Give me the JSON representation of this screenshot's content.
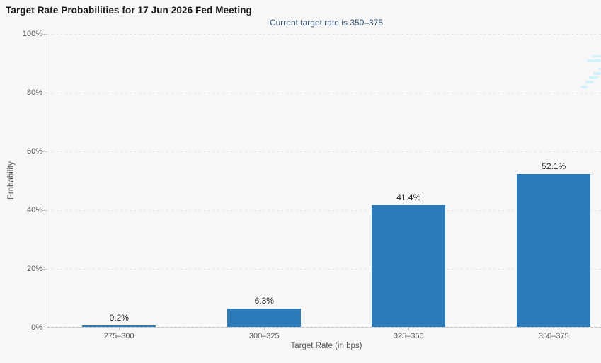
{
  "title": "Target Rate Probabilities for 17 Jun 2026 Fed Meeting",
  "subtitle": "Current target rate is 350–375",
  "chart_data": {
    "type": "bar",
    "title": "Target Rate Probabilities for 17 Jun 2026 Fed Meeting",
    "subtitle": "Current target rate is 350–375",
    "categories": [
      "275–300",
      "300–325",
      "325–350",
      "350–375"
    ],
    "values": [
      0.2,
      6.3,
      41.4,
      52.1
    ],
    "value_labels": [
      "0.2%",
      "6.3%",
      "41.4%",
      "52.1%"
    ],
    "xlabel": "Target Rate (in bps)",
    "ylabel": "Probability",
    "ylim": [
      0,
      100
    ],
    "ytick_labels": [
      "0%",
      "20%",
      "40%",
      "60%",
      "80%",
      "100%"
    ],
    "ytick_values": [
      0,
      20,
      40,
      60,
      80,
      100
    ],
    "grid": "horizontal dotted",
    "legend_position": "none",
    "bar_color": "#2d7cb9"
  },
  "colors": {
    "background": "#f7f7f7",
    "title_text": "#1a1a1a",
    "subtitle_text": "#2e4f6e",
    "axis_text": "#555555",
    "value_label_text": "#222222",
    "bar": "#2d7cb9",
    "gridline": "#d6d6d6",
    "axis_line": "#c9c9c9",
    "watermark": "#d3f1f9"
  },
  "watermark": {
    "name": "partial-logo-watermark",
    "description": "faint light-cyan dashes, clipped at top-right edge"
  }
}
